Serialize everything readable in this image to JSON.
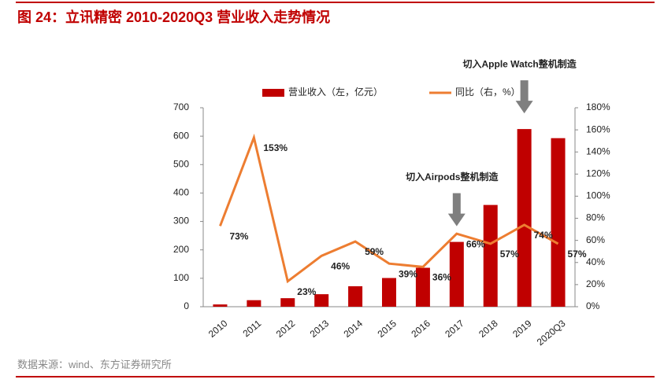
{
  "chart_data": {
    "type": "bar-line",
    "title": "图 24：立讯精密 2010-2020Q3 营业收入走势情况",
    "source": "数据来源：wind、东方证券研究所",
    "categories": [
      "2010",
      "2011",
      "2012",
      "2013",
      "2014",
      "2015",
      "2016",
      "2017",
      "2018",
      "2019",
      "2020Q3"
    ],
    "series": [
      {
        "name": "营业收入（左，亿元）",
        "color": "#c00000",
        "type": "bar",
        "values": [
          8,
          23,
          30,
          44,
          72,
          101,
          137,
          228,
          358,
          625,
          593
        ]
      },
      {
        "name": "同比（右，%）",
        "color": "#ed7d31",
        "type": "line",
        "axis": "y2",
        "values": [
          73,
          153,
          23,
          46,
          59,
          39,
          36,
          66,
          57,
          74,
          57
        ],
        "value_labels": [
          "73%",
          "153%",
          "23%",
          "46%",
          "59%",
          "39%",
          "36%",
          "66%",
          "57%",
          "74%",
          "57%"
        ]
      }
    ],
    "ylim": [
      0,
      700
    ],
    "yticks": [
      0,
      100,
      200,
      300,
      400,
      500,
      600,
      700
    ],
    "y2lim": [
      0,
      180
    ],
    "y2ticks": [
      {
        "value": 0,
        "label": "0%"
      },
      {
        "value": 20,
        "label": "20%"
      },
      {
        "value": 40,
        "label": "40%"
      },
      {
        "value": 60,
        "label": "60%"
      },
      {
        "value": 80,
        "label": "80%"
      },
      {
        "value": 100,
        "label": "100%"
      },
      {
        "value": 120,
        "label": "120%"
      },
      {
        "value": 140,
        "label": "140%"
      },
      {
        "value": 160,
        "label": "160%"
      },
      {
        "value": 180,
        "label": "180%"
      }
    ],
    "annotations": [
      {
        "text": "切入Airpods整机制造",
        "category": "2017"
      },
      {
        "text": "切入Apple Watch整机制造",
        "category": "2019"
      }
    ]
  }
}
